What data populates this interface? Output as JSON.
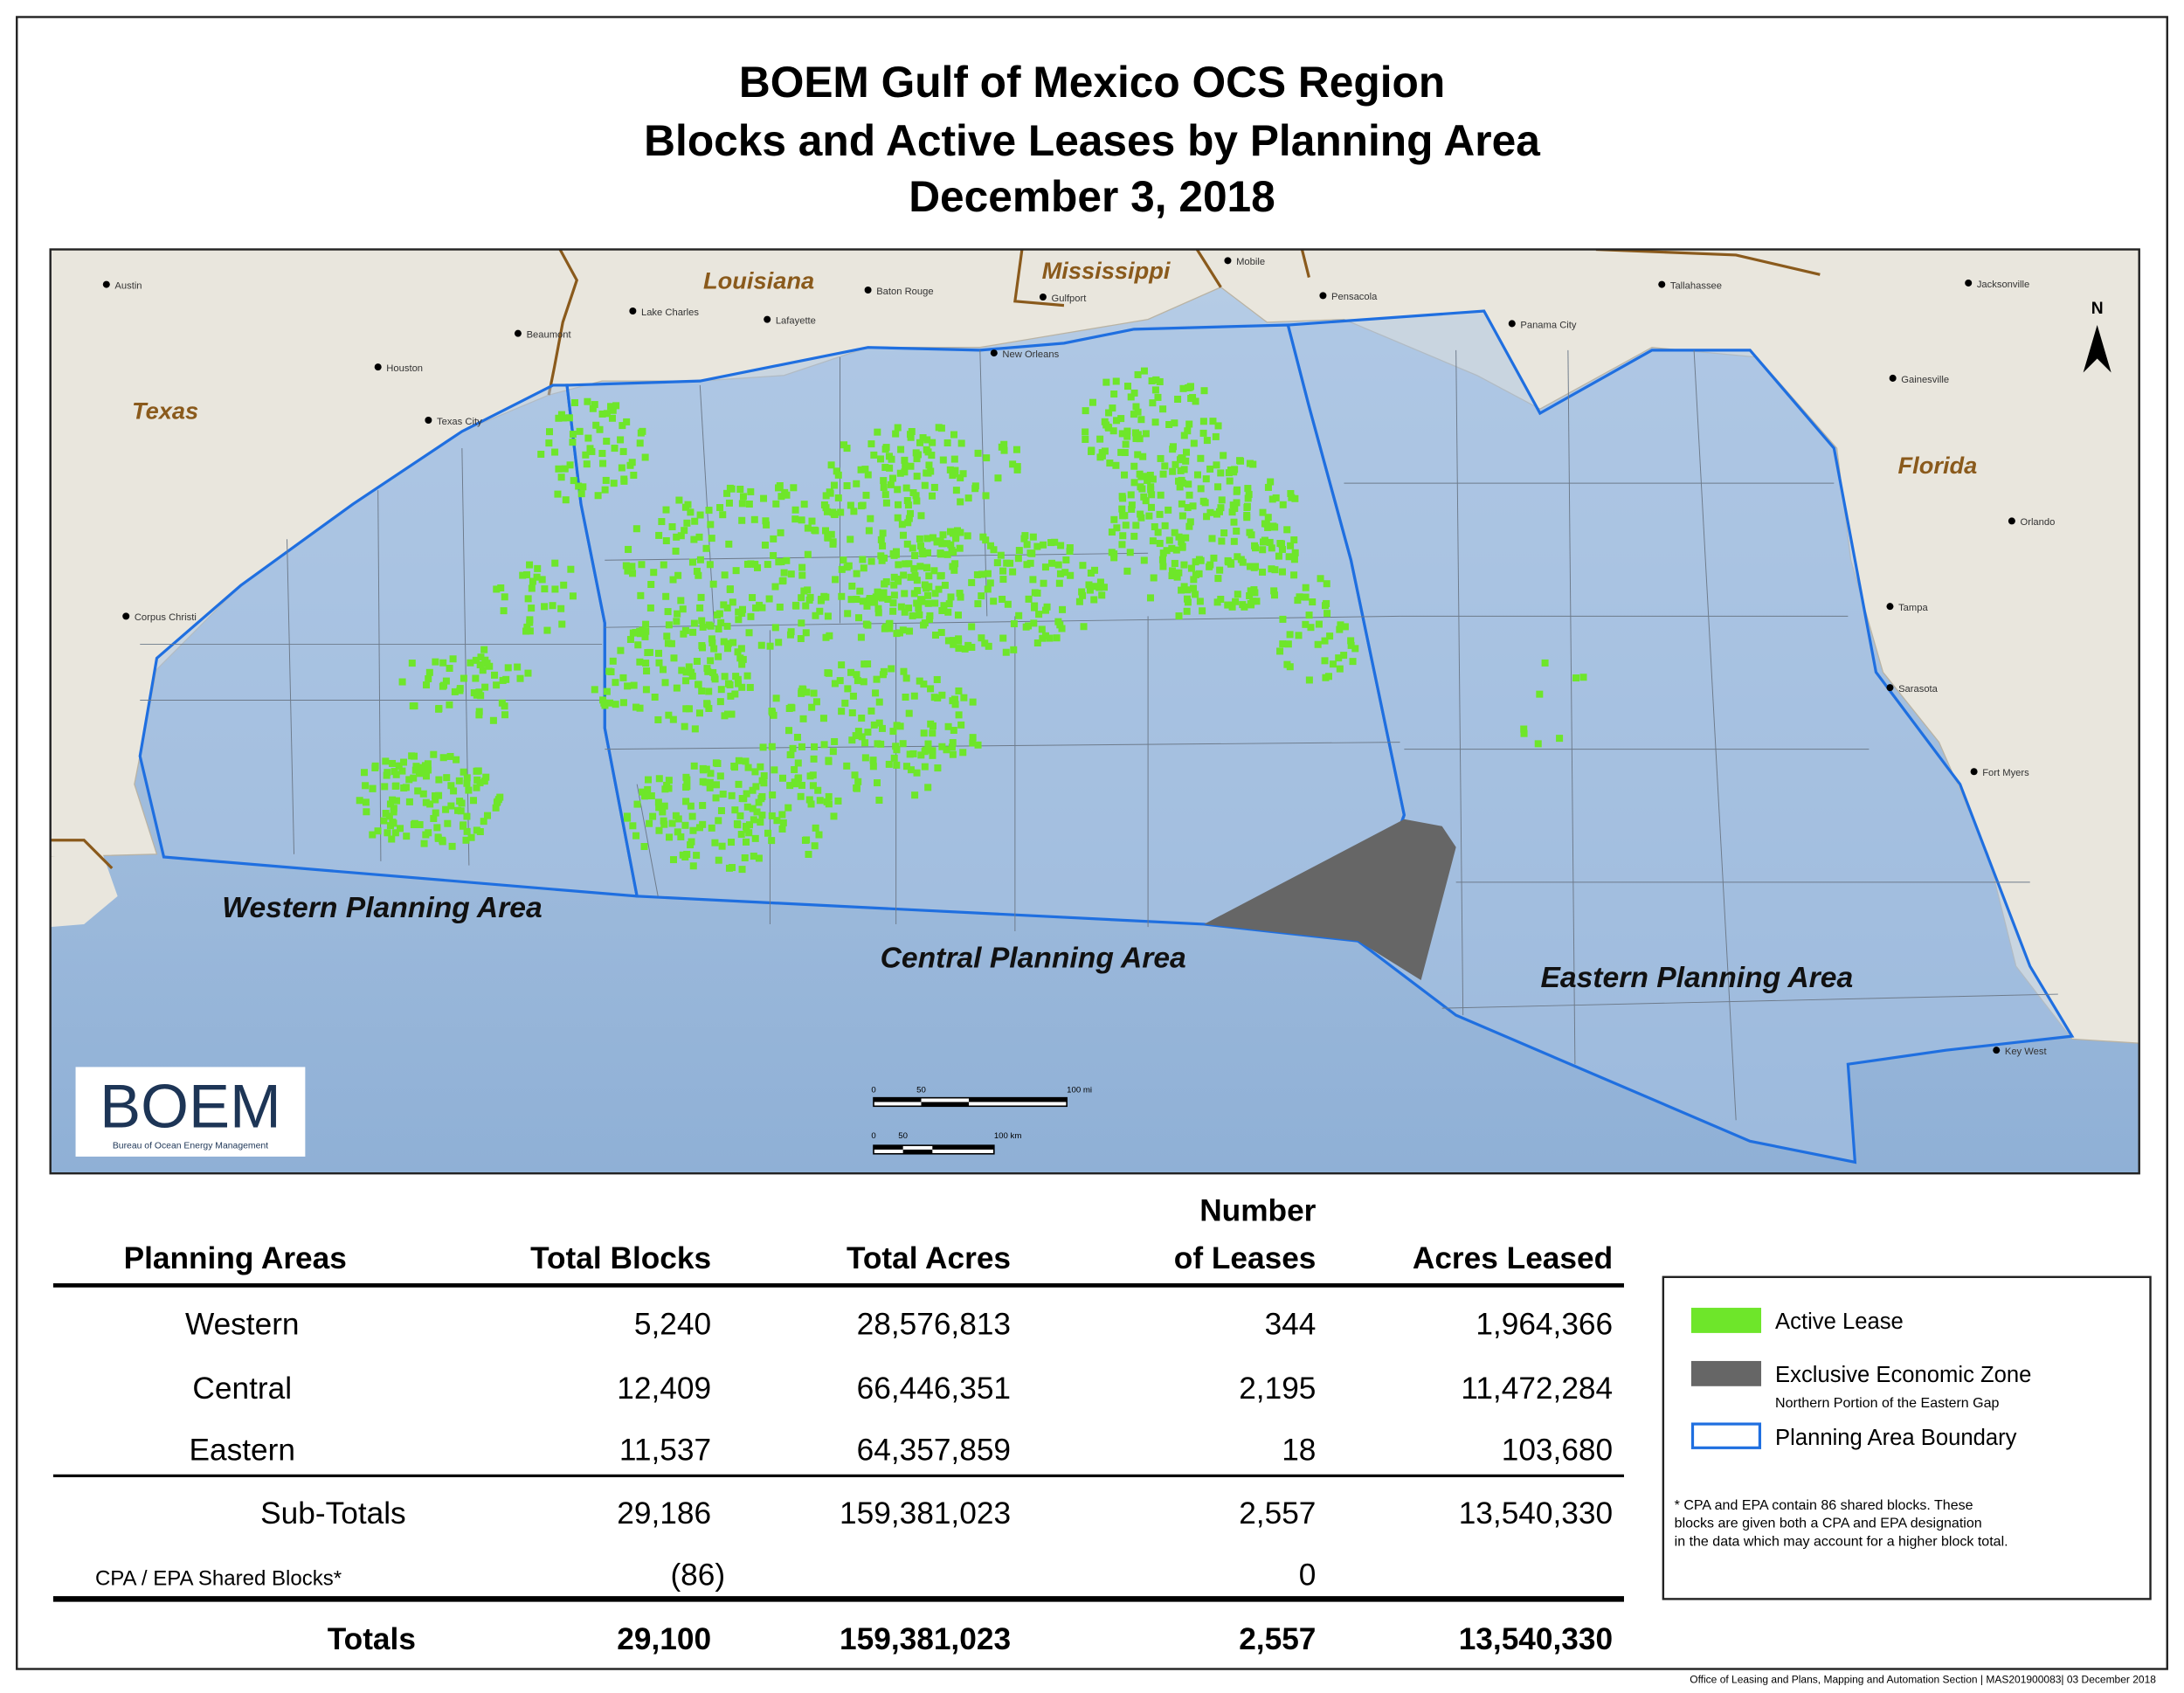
{
  "header": {
    "title_lines": [
      "BOEM Gulf of Mexico OCS Region",
      "Blocks and Active Leases by Planning Area",
      "December 3, 2018"
    ]
  },
  "map": {
    "state_labels": [
      "Texas",
      "Louisiana",
      "Mississippi",
      "Florida"
    ],
    "area_labels": [
      "Western Planning Area",
      "Central Planning Area",
      "Eastern Planning Area"
    ],
    "cities": [
      "Austin",
      "Houston",
      "Beaumont",
      "Lake Charles",
      "Lafayette",
      "Baton Rouge",
      "New Orleans",
      "Gulfport",
      "Mobile",
      "Pensacola",
      "Panama City",
      "Tallahassee",
      "Jacksonville",
      "Gainesville",
      "Orlando",
      "Tampa",
      "Sarasota",
      "Fort Myers",
      "Key West",
      "Corpus Christi",
      "Texas City"
    ],
    "north": "N",
    "scale_miles": [
      "0",
      "50",
      "100 mi"
    ],
    "scale_km": [
      "0",
      "50",
      "100 km"
    ],
    "logo": {
      "name": "BOEM",
      "subtitle": "Bureau of Ocean Energy Management"
    }
  },
  "table": {
    "header": [
      [
        "Planning Areas"
      ],
      [
        "Total Blocks"
      ],
      [
        "Total Acres"
      ],
      [
        "Number",
        "of Leases"
      ],
      [
        "Acres Leased"
      ]
    ],
    "rows": [
      [
        "Western",
        "5,240",
        "28,576,813",
        "344",
        "1,964,366"
      ],
      [
        "Central",
        "12,409",
        "66,446,351",
        "2,195",
        "11,472,284"
      ],
      [
        "Eastern",
        "11,537",
        "64,357,859",
        "18",
        "103,680"
      ],
      [
        "Sub-Totals",
        "29,186",
        "159,381,023",
        "2,557",
        "13,540,330"
      ],
      [
        "CPA / EPA Shared Blocks*",
        "(86)",
        null,
        "0",
        null
      ],
      [
        "Totals",
        "29,100",
        "159,381,023",
        "2,557",
        "13,540,330"
      ]
    ]
  },
  "legend": {
    "items": [
      {
        "label": "Active Lease"
      },
      {
        "label": "Exclusive Economic Zone",
        "note": "Northern Portion of the Eastern Gap"
      },
      {
        "label": "Planning Area Boundary"
      }
    ],
    "footnote": [
      "* CPA and EPA contain 86 shared blocks. These",
      "blocks are given both a CPA and EPA designation",
      "in the data which may account for a higher block total."
    ]
  },
  "credit": "Office of Leasing and Plans, Mapping and Automation Section | MAS201900083| 03 December 2018"
}
